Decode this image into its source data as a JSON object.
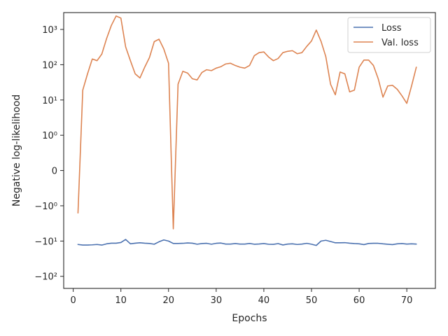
{
  "chart_data": {
    "type": "line",
    "xlabel": "Epochs",
    "ylabel": "Negative log-likelihood",
    "xlim": [
      -2,
      76
    ],
    "yscale": "symlog",
    "ylim": [
      -220,
      3000
    ],
    "xticks": [
      0,
      10,
      20,
      30,
      40,
      50,
      60,
      70
    ],
    "yticks": [
      {
        "value": -100,
        "label": "−10²"
      },
      {
        "value": -10,
        "label": "−10¹"
      },
      {
        "value": -1,
        "label": "−10⁰"
      },
      {
        "value": 0,
        "label": "0"
      },
      {
        "value": 1,
        "label": "10⁰"
      },
      {
        "value": 10,
        "label": "10¹"
      },
      {
        "value": 100,
        "label": "10²"
      },
      {
        "value": 1000,
        "label": "10³"
      }
    ],
    "legend_position": "top-right",
    "grid": false,
    "x": [
      1,
      2,
      3,
      4,
      5,
      6,
      7,
      8,
      9,
      10,
      11,
      12,
      13,
      14,
      15,
      16,
      17,
      18,
      19,
      20,
      21,
      22,
      23,
      24,
      25,
      26,
      27,
      28,
      29,
      30,
      31,
      32,
      33,
      34,
      35,
      36,
      37,
      38,
      39,
      40,
      41,
      42,
      43,
      44,
      45,
      46,
      47,
      48,
      49,
      50,
      51,
      52,
      53,
      54,
      55,
      56,
      57,
      58,
      59,
      60,
      61,
      62,
      63,
      64,
      65,
      66,
      67,
      68,
      69,
      70,
      71,
      72
    ],
    "series": [
      {
        "name": "Loss",
        "color": "#4c72b0",
        "values": [
          -12.5,
          -13,
          -13,
          -12.8,
          -12.5,
          -13,
          -12,
          -11.5,
          -11.5,
          -11,
          -9,
          -12,
          -11.5,
          -11.2,
          -11.5,
          -11.7,
          -12.3,
          -10.5,
          -9.3,
          -10,
          -11.7,
          -11.7,
          -11.6,
          -11.3,
          -11.5,
          -12.3,
          -11.8,
          -11.6,
          -12.3,
          -11.6,
          -11.4,
          -12.2,
          -12.2,
          -11.8,
          -12.2,
          -12.2,
          -11.7,
          -12.3,
          -12.1,
          -11.8,
          -12.3,
          -12.4,
          -11.8,
          -12.9,
          -12.2,
          -12,
          -12.5,
          -12.2,
          -11.6,
          -12.3,
          -13.3,
          -10,
          -9.5,
          -10.3,
          -11.2,
          -11.2,
          -11.1,
          -11.5,
          -11.8,
          -12,
          -12.6,
          -11.7,
          -11.6,
          -11.6,
          -12,
          -12.3,
          -12.6,
          -12,
          -11.8,
          -12.2,
          -12,
          -12.2
        ]
      },
      {
        "name": "Val. loss",
        "color": "#dd8452",
        "values": [
          -1.6,
          19,
          55,
          145,
          130,
          200,
          550,
          1300,
          2400,
          2100,
          320,
          130,
          55,
          42,
          85,
          160,
          450,
          530,
          280,
          110,
          -4.5,
          28,
          65,
          58,
          40,
          37,
          60,
          72,
          68,
          80,
          88,
          105,
          110,
          95,
          85,
          80,
          95,
          180,
          220,
          230,
          165,
          130,
          150,
          220,
          240,
          250,
          205,
          220,
          330,
          470,
          960,
          460,
          170,
          28,
          14,
          62,
          55,
          17,
          19,
          85,
          135,
          135,
          95,
          40,
          12,
          25,
          26,
          20,
          13,
          8,
          25,
          85
        ]
      }
    ]
  }
}
